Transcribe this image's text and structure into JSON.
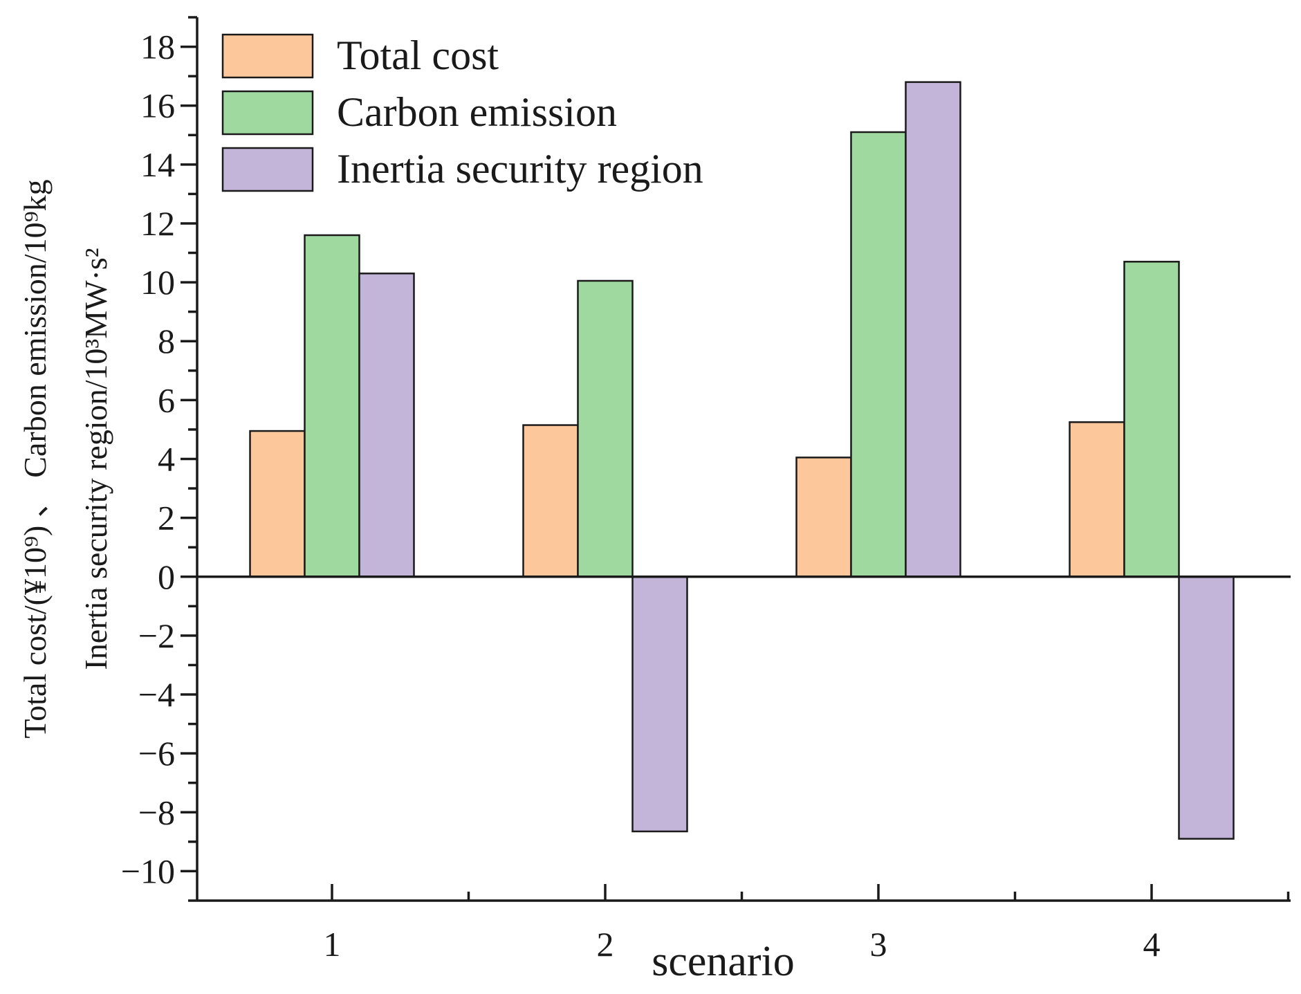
{
  "chart_data": {
    "type": "bar",
    "title": "",
    "xlabel": "scenario",
    "ylabel_lines": [
      "Total cost/(¥10⁹) 、 Carbon emission/10⁹kg",
      "Inertia security region/10³MW·s²"
    ],
    "categories": [
      "1",
      "2",
      "3",
      "4"
    ],
    "ylim": [
      -11,
      19
    ],
    "yticks": [
      18,
      16,
      14,
      12,
      10,
      8,
      6,
      4,
      2,
      0,
      -2,
      -4,
      -6,
      -8,
      -10
    ],
    "ytick_labels": [
      "18",
      "16",
      "14",
      "12",
      "10",
      "8",
      "6",
      "4",
      "2",
      "0",
      "−2",
      "−4",
      "−6",
      "−8",
      "−10"
    ],
    "legend_position": "top-left",
    "series": [
      {
        "name": "Total cost",
        "color": "#fcc79b",
        "values": [
          4.95,
          5.15,
          4.05,
          5.25
        ]
      },
      {
        "name": "Carbon emission",
        "color": "#9fd9a0",
        "values": [
          11.6,
          10.05,
          15.1,
          10.7
        ]
      },
      {
        "name": "Inertia security region",
        "color": "#c3b4d9",
        "values": [
          10.3,
          -8.65,
          16.8,
          -8.9
        ]
      }
    ]
  }
}
